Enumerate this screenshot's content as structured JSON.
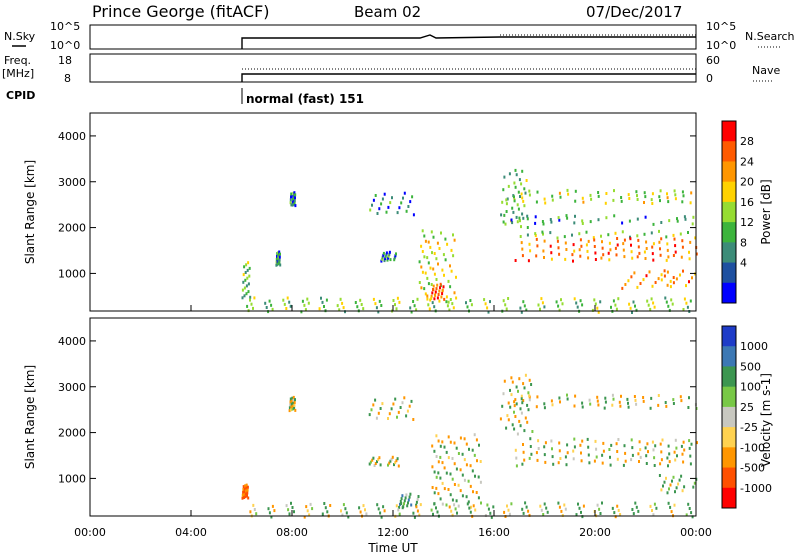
{
  "header": {
    "station": "Prince George (fitACF)",
    "beam": "Beam 02",
    "date": "07/Dec/2017"
  },
  "top_panels": {
    "nsky_label": "N.Sky",
    "nsearch_label": "N.Search",
    "freq_label_1": "Freq.",
    "freq_label_2": "[MHz]",
    "nave_label": "Nave",
    "cpid_label": "CPID",
    "cpid_value": "normal (fast) 151",
    "noise_ticks_left": [
      "10^5",
      "10^0"
    ],
    "noise_ticks_right": [
      "10^5",
      "10^0"
    ],
    "freq_ticks": [
      "18",
      "8"
    ],
    "nave_ticks": [
      "60",
      "0"
    ]
  },
  "chart_data": [
    {
      "type": "heatmap",
      "name": "power",
      "ylabel": "Slant Range [km]",
      "xlabel": "",
      "xlim": [
        0,
        24
      ],
      "ylim": [
        180,
        4500
      ],
      "y_ticks": [
        1000,
        2000,
        3000,
        4000
      ],
      "colorbar": {
        "label": "Power [dB]",
        "ticks": [
          "28",
          "24",
          "20",
          "16",
          "12",
          "8",
          "4"
        ],
        "colors": [
          "#ff0000",
          "#ff5a00",
          "#ff9600",
          "#ffd200",
          "#96dc32",
          "#3cb43c",
          "#3c8c78",
          "#1e50a0",
          "#0000ff"
        ]
      },
      "regions": [
        {
          "t0": 6.0,
          "t1": 6.4,
          "r0": 500,
          "r1": 1300,
          "value": 10
        },
        {
          "t0": 7.3,
          "t1": 7.5,
          "r0": 1200,
          "r1": 1500,
          "value": 8
        },
        {
          "t0": 7.9,
          "t1": 8.1,
          "r0": 2500,
          "r1": 2800,
          "value": 6
        },
        {
          "t0": 11.0,
          "t1": 12.8,
          "r0": 2300,
          "r1": 2800,
          "value": 6
        },
        {
          "t0": 11.5,
          "t1": 12.1,
          "r0": 1300,
          "r1": 1500,
          "value": 6
        },
        {
          "t0": 13.0,
          "t1": 14.5,
          "r0": 400,
          "r1": 2000,
          "value": 16
        },
        {
          "t0": 13.3,
          "t1": 14.0,
          "r0": 450,
          "r1": 800,
          "value": 26
        },
        {
          "t0": 16.2,
          "t1": 17.3,
          "r0": 2000,
          "r1": 3300,
          "value": 10
        },
        {
          "t0": 16.4,
          "t1": 24.0,
          "r0": 2550,
          "r1": 2850,
          "value": 14
        },
        {
          "t0": 16.2,
          "t1": 24.0,
          "r0": 2100,
          "r1": 2300,
          "value": 8
        },
        {
          "t0": 16.8,
          "t1": 24.0,
          "r0": 1800,
          "r1": 1950,
          "value": 12
        },
        {
          "t0": 16.8,
          "t1": 24.0,
          "r0": 1300,
          "r1": 1800,
          "value": 24
        },
        {
          "t0": 21.0,
          "t1": 24.0,
          "r0": 700,
          "r1": 1100,
          "value": 22
        },
        {
          "t0": 6.0,
          "t1": 24.0,
          "r0": 180,
          "r1": 500,
          "value": 12
        }
      ]
    },
    {
      "type": "heatmap",
      "name": "velocity",
      "ylabel": "Slant Range [km]",
      "xlabel": "Time UT",
      "xlim": [
        0,
        24
      ],
      "ylim": [
        180,
        4500
      ],
      "x_ticks": [
        "00:00",
        "04:00",
        "08:00",
        "12:00",
        "16:00",
        "20:00",
        "00:00"
      ],
      "y_ticks": [
        1000,
        2000,
        3000,
        4000
      ],
      "colorbar": {
        "label": "Velocity [m s-1]",
        "ticks": [
          "1000",
          "500",
          "100",
          "25",
          "-25",
          "-100",
          "-500",
          "-1000"
        ],
        "colors": [
          "#1e3cc8",
          "#3c78b4",
          "#3c9650",
          "#78c846",
          "#c8c8c0",
          "#ffd250",
          "#ff9600",
          "#ff5000",
          "#ff0000"
        ]
      },
      "regions": [
        {
          "t0": 6.0,
          "t1": 6.3,
          "r0": 600,
          "r1": 900,
          "value": -600
        },
        {
          "t0": 7.8,
          "t1": 8.1,
          "r0": 2500,
          "r1": 2800,
          "value": 0
        },
        {
          "t0": 11.0,
          "t1": 12.8,
          "r0": 2300,
          "r1": 2800,
          "value": 0
        },
        {
          "t0": 11.0,
          "t1": 12.2,
          "r0": 1300,
          "r1": 1500,
          "value": 0
        },
        {
          "t0": 12.2,
          "t1": 13.0,
          "r0": 400,
          "r1": 700,
          "value": 300
        },
        {
          "t0": 13.5,
          "t1": 15.5,
          "r0": 400,
          "r1": 2000,
          "value": 0
        },
        {
          "t0": 16.2,
          "t1": 17.5,
          "r0": 2000,
          "r1": 3300,
          "value": 0
        },
        {
          "t0": 16.5,
          "t1": 24.0,
          "r0": 2550,
          "r1": 2850,
          "value": 0
        },
        {
          "t0": 16.8,
          "t1": 24.0,
          "r0": 1300,
          "r1": 1900,
          "value": 0
        },
        {
          "t0": 22.5,
          "t1": 24.0,
          "r0": 700,
          "r1": 1100,
          "value": 150
        },
        {
          "t0": 6.0,
          "t1": 24.0,
          "r0": 180,
          "r1": 500,
          "value": 80
        }
      ]
    }
  ]
}
